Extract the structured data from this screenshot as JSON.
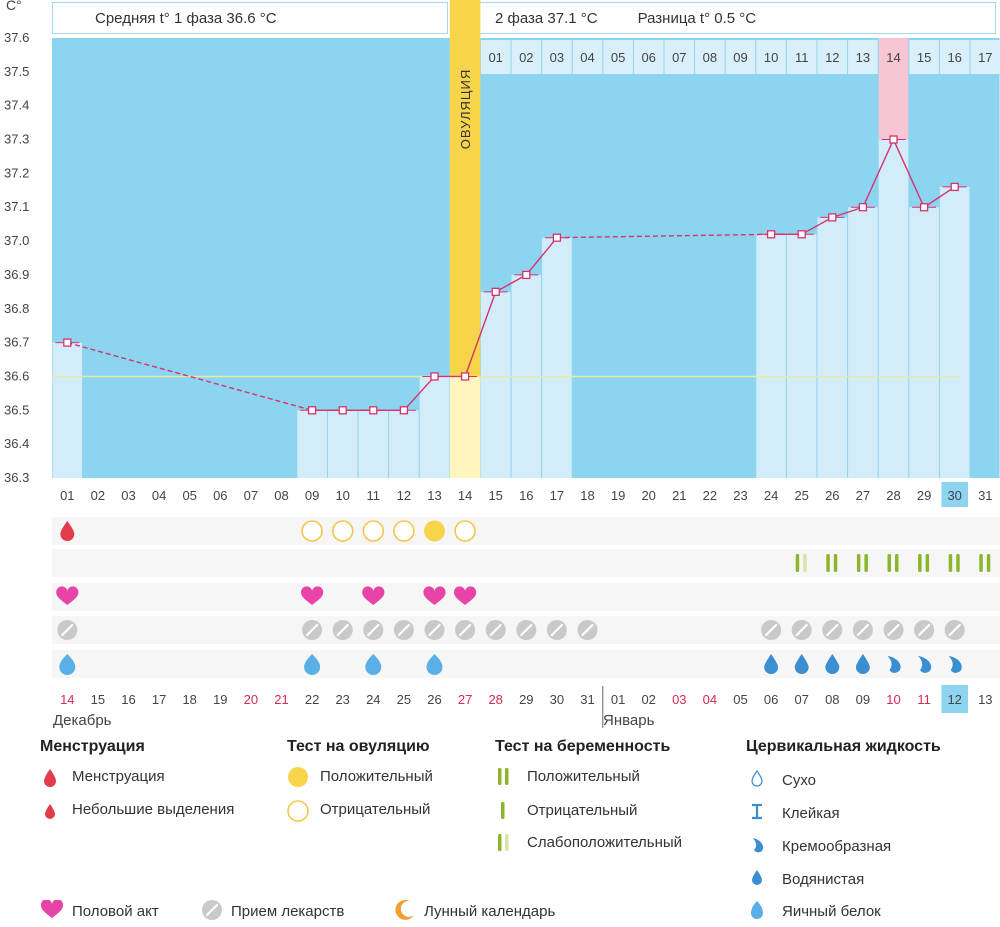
{
  "header": {
    "y_unit": "С°",
    "phase1": "Средняя t° 1 фаза 36.6 °С",
    "phase2": "2 фаза 37.1 °С",
    "diff": "Разница t° 0.5 °С"
  },
  "chart_data": {
    "type": "line",
    "ylabel": "С°",
    "ylim": [
      36.3,
      37.6
    ],
    "y_ticks": [
      "37.6",
      "37.5",
      "37.4",
      "37.3",
      "37.2",
      "37.1",
      "37.0",
      "36.9",
      "36.8",
      "36.7",
      "36.6",
      "36.5",
      "36.4",
      "36.3"
    ],
    "cycle_days": [
      "01",
      "02",
      "03",
      "04",
      "05",
      "06",
      "07",
      "08",
      "09",
      "10",
      "11",
      "12",
      "13",
      "14",
      "15",
      "16",
      "17",
      "18",
      "19",
      "20",
      "21",
      "22",
      "23",
      "24",
      "25",
      "26",
      "27",
      "28",
      "29",
      "30",
      "31"
    ],
    "temperatures": [
      36.7,
      null,
      null,
      null,
      null,
      null,
      null,
      null,
      36.5,
      36.5,
      36.5,
      36.5,
      36.6,
      36.6,
      36.85,
      36.9,
      37.01,
      null,
      null,
      null,
      null,
      null,
      null,
      37.02,
      37.02,
      37.07,
      37.1,
      37.3,
      37.1,
      37.16,
      null
    ],
    "coverline": 36.6,
    "ovulation_day": 14,
    "ovulation_label": "ОВУЛЯЦИЯ",
    "current_day": 30,
    "post_ovulation_days": [
      "01",
      "02",
      "03",
      "04",
      "05",
      "06",
      "07",
      "08",
      "09",
      "10",
      "11",
      "12",
      "13",
      "14",
      "15",
      "16",
      "17"
    ],
    "highlight_post_day": 14,
    "dates": [
      "14",
      "15",
      "16",
      "17",
      "18",
      "19",
      "20",
      "21",
      "22",
      "23",
      "24",
      "25",
      "26",
      "27",
      "28",
      "29",
      "30",
      "31",
      "01",
      "02",
      "03",
      "04",
      "05",
      "06",
      "07",
      "08",
      "09",
      "10",
      "11",
      "12",
      "13"
    ],
    "weekend_dates": [
      0,
      6,
      7,
      13,
      14,
      20,
      21,
      27,
      28
    ],
    "current_date_index": 29,
    "month_left": "Декабрь",
    "month_right": "Январь",
    "marks": {
      "menstruation_days": [
        1
      ],
      "ovulation_test_negative_days": [
        9,
        10,
        11,
        12,
        14
      ],
      "ovulation_test_positive_days": [
        13
      ],
      "pregnancy_test_weak_days": [
        25
      ],
      "pregnancy_test_positive_days": [
        26,
        27,
        28,
        29,
        30,
        31
      ],
      "intercourse_days": [
        1,
        9,
        11,
        13,
        14
      ],
      "medication_days": [
        1,
        9,
        10,
        11,
        12,
        13,
        14,
        15,
        16,
        17,
        18,
        24,
        25,
        26,
        27,
        28,
        29,
        30
      ],
      "fluid_eggwhite_days": [
        1,
        9,
        11,
        13
      ],
      "fluid_watery_days": [
        24,
        25,
        26,
        27
      ],
      "fluid_creamy_days": [
        28,
        29,
        30
      ]
    },
    "colors": {
      "background": "#8dd4f0",
      "bar": "#d3ecfa",
      "line": "#d6336c",
      "coverline": "#e8e9a6",
      "ovulation": "#f7d44a",
      "ovulation_light": "#fff6bd",
      "highlight": "#f7c6d2"
    }
  },
  "legend": {
    "menstruation": {
      "title": "Менструация",
      "items": [
        "Менструация",
        "Небольшие выделения"
      ]
    },
    "ovulation_test": {
      "title": "Тест на овуляцию",
      "items": [
        "Положительный",
        "Отрицательный"
      ]
    },
    "pregnancy_test": {
      "title": "Тест на беременность",
      "items": [
        "Положительный",
        "Отрицательный",
        "Слабоположительный"
      ]
    },
    "cervical_fluid": {
      "title": "Цервикальная жидкость",
      "items": [
        "Сухо",
        "Клейкая",
        "Кремообразная",
        "Водянистая",
        "Яичный белок"
      ]
    },
    "bottom": [
      "Половой акт",
      "Прием лекарств",
      "Лунный календарь"
    ]
  }
}
